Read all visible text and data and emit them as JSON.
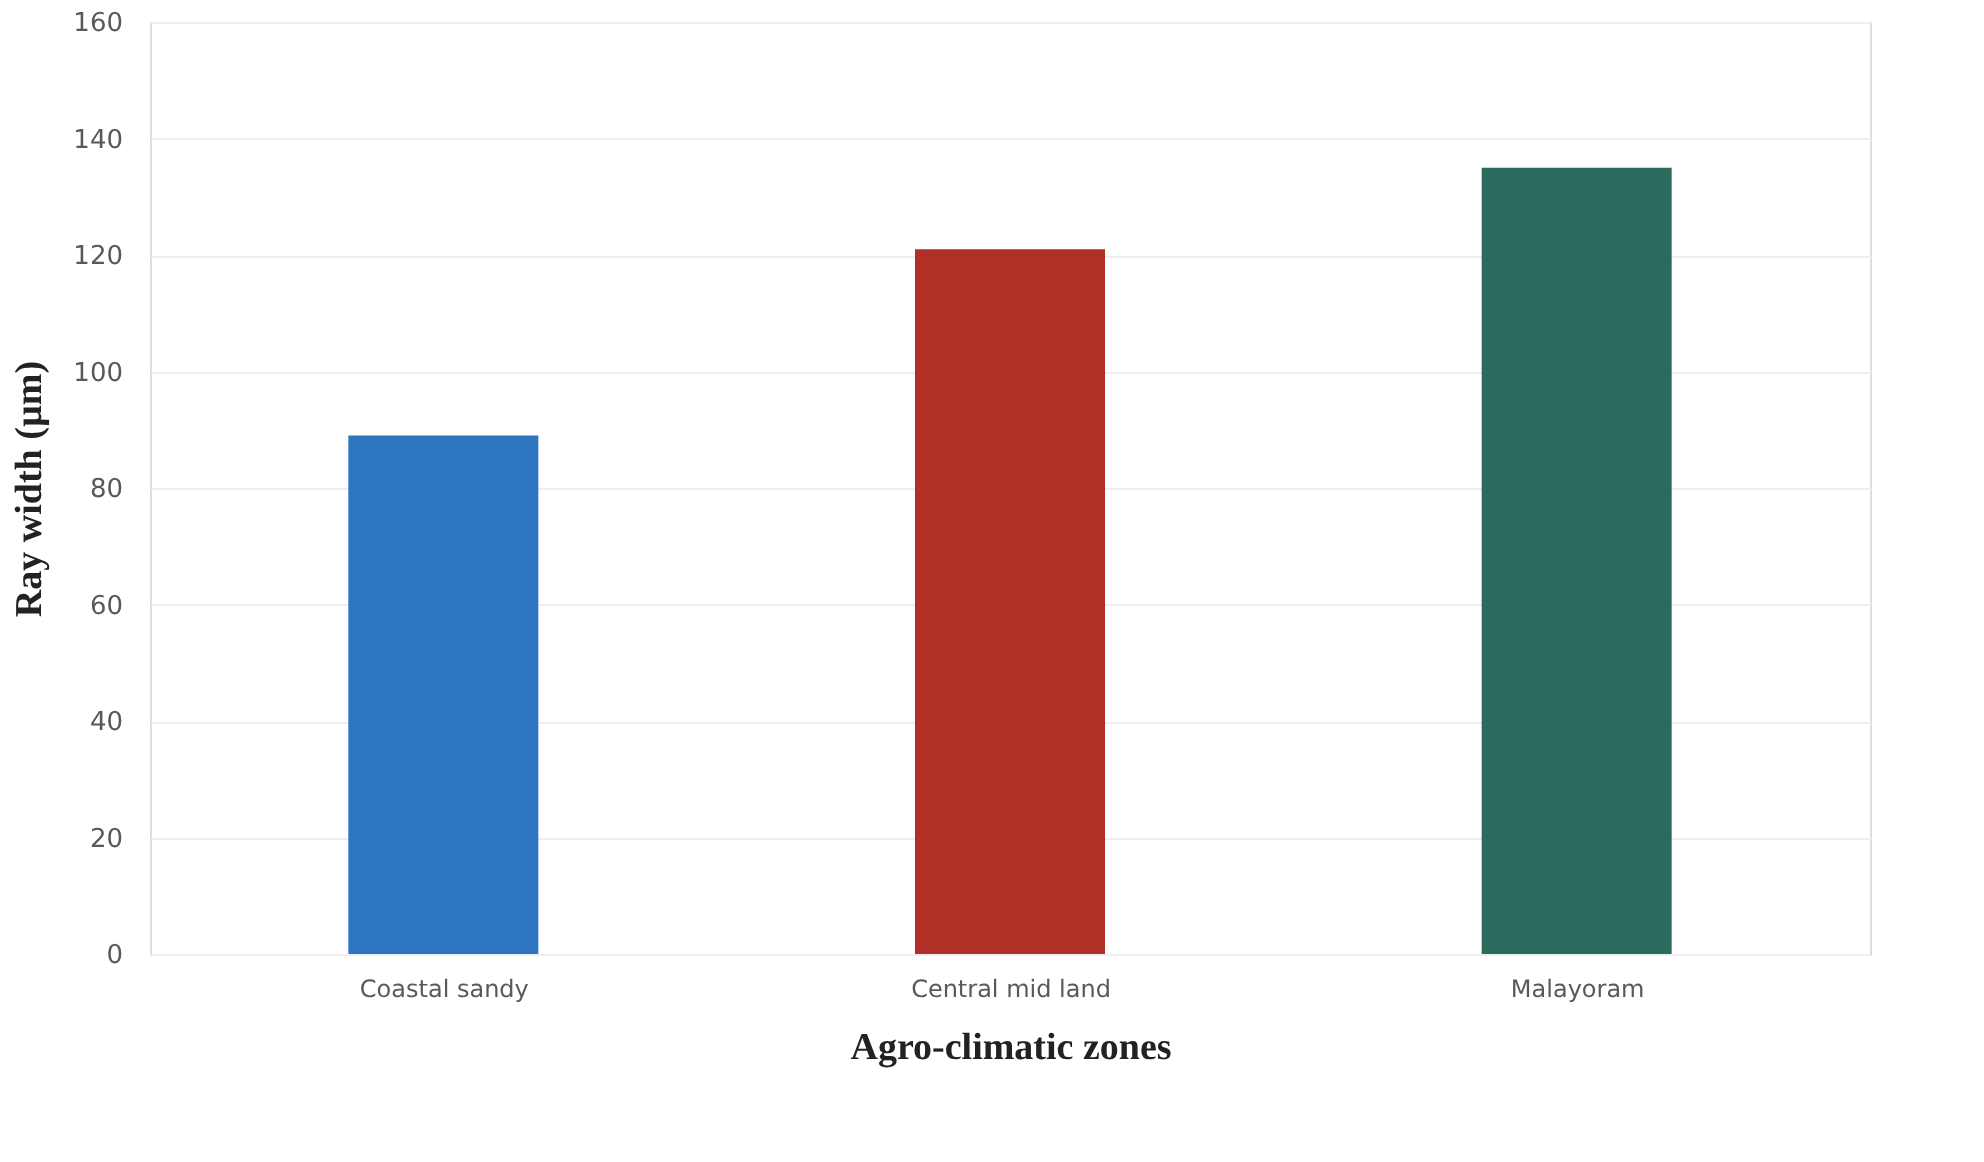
{
  "chart_data": {
    "type": "bar",
    "xlabel": "Agro-climatic zones",
    "ylabel": "Ray width (µm)",
    "categories": [
      "Coastal sandy",
      "Central mid land",
      "Malayoram"
    ],
    "values": [
      89,
      121,
      135
    ],
    "colors": [
      "#2e75c0",
      "#b03027",
      "#2a6b5e"
    ],
    "ylim": [
      0,
      160
    ],
    "yticks": [
      0,
      20,
      40,
      60,
      80,
      100,
      120,
      140,
      160
    ],
    "grid": "y"
  }
}
